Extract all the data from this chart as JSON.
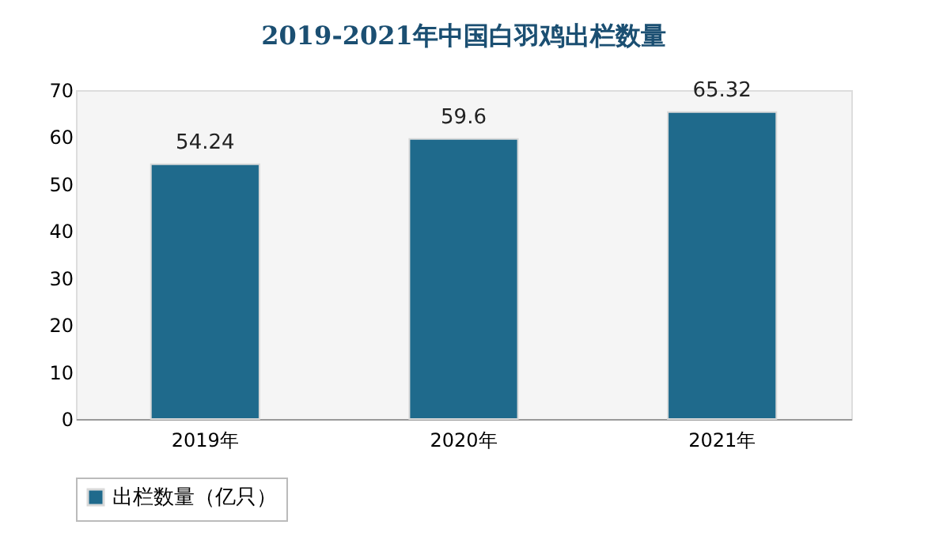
{
  "chart_data": {
    "type": "bar",
    "title": "2019-2021年中国白羽鸡出栏数量",
    "categories": [
      "2019年",
      "2020年",
      "2021年"
    ],
    "series": [
      {
        "name": "出栏数量（亿只）",
        "color": "#1f6a8c",
        "values": [
          54.24,
          59.6,
          65.32
        ]
      }
    ],
    "ylim": [
      0,
      70
    ],
    "yticks": [
      0,
      10,
      20,
      30,
      40,
      50,
      60,
      70
    ],
    "grid": false,
    "legend": "bottom",
    "data_labels": true
  }
}
